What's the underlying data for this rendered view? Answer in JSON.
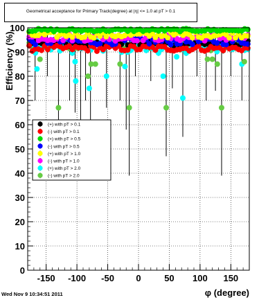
{
  "chart_data": {
    "type": "scatter",
    "title": "Geometrical acceptance for Primary Track(degree) at |η| <= 1.0 at pT > 0.1",
    "xlabel": "φ (degree)",
    "ylabel": "Efficiency (%)",
    "xlim": [
      -180,
      180
    ],
    "ylim": [
      0,
      100
    ],
    "x_ticks": [
      -150,
      -100,
      -50,
      0,
      50,
      100,
      150
    ],
    "y_ticks": [
      0,
      10,
      20,
      30,
      40,
      50,
      60,
      70,
      80,
      90,
      100
    ],
    "grid": true,
    "legend_placement": "middle-left",
    "series": [
      {
        "name": "(+) with pT > 0.1",
        "color": "#000000",
        "marker": "circle",
        "y_center": 93.5,
        "y_spread": 1.2
      },
      {
        "name": "(-) with pT > 0.1",
        "color": "#ff0000",
        "marker": "circle",
        "y_center": 91.5,
        "y_spread": 1.2
      },
      {
        "name": "(+) with pT > 0.5",
        "color": "#00dd00",
        "marker": "circle",
        "y_center": 99.0,
        "y_spread": 0.6
      },
      {
        "name": "(-) with pT > 0.5",
        "color": "#0000ff",
        "marker": "circle",
        "y_center": 94.5,
        "y_spread": 1.5
      },
      {
        "name": "(+) with pT > 1.0",
        "color": "#ffff00",
        "marker": "circle",
        "y_center": 97.0,
        "y_spread": 1.2
      },
      {
        "name": "(-) with pT > 1.0",
        "color": "#ff00ff",
        "marker": "circle",
        "y_center": 96.0,
        "y_spread": 1.5
      },
      {
        "name": "(+) with pT > 2.0",
        "color": "#00ffff",
        "marker": "circle",
        "y_center": 92.0,
        "y_spread": 2.5
      },
      {
        "name": "(-) with pT > 2.0",
        "color": "#66cc44",
        "marker": "circle",
        "y_center": 93.0,
        "y_spread": 2.5
      }
    ],
    "outliers": [
      {
        "series": 6,
        "x": -165,
        "y": 83
      },
      {
        "series": 7,
        "x": -160,
        "y": 87
      },
      {
        "series": 7,
        "x": -130,
        "y": 67
      },
      {
        "series": 6,
        "x": -103,
        "y": 86
      },
      {
        "series": 6,
        "x": -102,
        "y": 78
      },
      {
        "series": 7,
        "x": -82,
        "y": 80
      },
      {
        "series": 6,
        "x": -80,
        "y": 75
      },
      {
        "series": 7,
        "x": -77,
        "y": 85
      },
      {
        "series": 7,
        "x": -70,
        "y": 85
      },
      {
        "series": 6,
        "x": -52,
        "y": 80
      },
      {
        "series": 7,
        "x": -30,
        "y": 85
      },
      {
        "series": 6,
        "x": -22,
        "y": 84
      },
      {
        "series": 7,
        "x": -15,
        "y": 67
      },
      {
        "series": 6,
        "x": 40,
        "y": 80
      },
      {
        "series": 7,
        "x": 45,
        "y": 67
      },
      {
        "series": 6,
        "x": 62,
        "y": 88
      },
      {
        "series": 6,
        "x": 72,
        "y": 71
      },
      {
        "series": 7,
        "x": 112,
        "y": 87
      },
      {
        "series": 7,
        "x": 120,
        "y": 87
      },
      {
        "series": 7,
        "x": 128,
        "y": 85
      },
      {
        "series": 7,
        "x": 135,
        "y": 67
      },
      {
        "series": 6,
        "x": 168,
        "y": 85
      },
      {
        "series": 7,
        "x": 172,
        "y": 86
      }
    ],
    "long_error_bars": [
      {
        "x": -168,
        "low": 70,
        "high": 100
      },
      {
        "x": -148,
        "low": 80,
        "high": 100
      },
      {
        "x": -130,
        "low": 55,
        "high": 98
      },
      {
        "x": -112,
        "low": 70,
        "high": 100
      },
      {
        "x": -103,
        "low": 65,
        "high": 100
      },
      {
        "x": -94,
        "low": 45,
        "high": 100
      },
      {
        "x": -86,
        "low": 70,
        "high": 100
      },
      {
        "x": -78,
        "low": 55,
        "high": 100
      },
      {
        "x": -52,
        "low": 67,
        "high": 100
      },
      {
        "x": -30,
        "low": 70,
        "high": 100
      },
      {
        "x": -20,
        "low": 58,
        "high": 100
      },
      {
        "x": -15,
        "low": 39,
        "high": 100
      },
      {
        "x": -5,
        "low": 80,
        "high": 100
      },
      {
        "x": 20,
        "low": 78,
        "high": 100
      },
      {
        "x": 45,
        "low": 47,
        "high": 100
      },
      {
        "x": 55,
        "low": 75,
        "high": 100
      },
      {
        "x": 72,
        "low": 55,
        "high": 100
      },
      {
        "x": 95,
        "low": 80,
        "high": 100
      },
      {
        "x": 110,
        "low": 70,
        "high": 100
      },
      {
        "x": 125,
        "low": 74,
        "high": 100
      },
      {
        "x": 135,
        "low": 39,
        "high": 100
      },
      {
        "x": 150,
        "low": 80,
        "high": 100
      },
      {
        "x": 168,
        "low": 70,
        "high": 100
      }
    ]
  },
  "footer": {
    "timestamp": "Wed Nov  9 10:34:51 2011"
  }
}
